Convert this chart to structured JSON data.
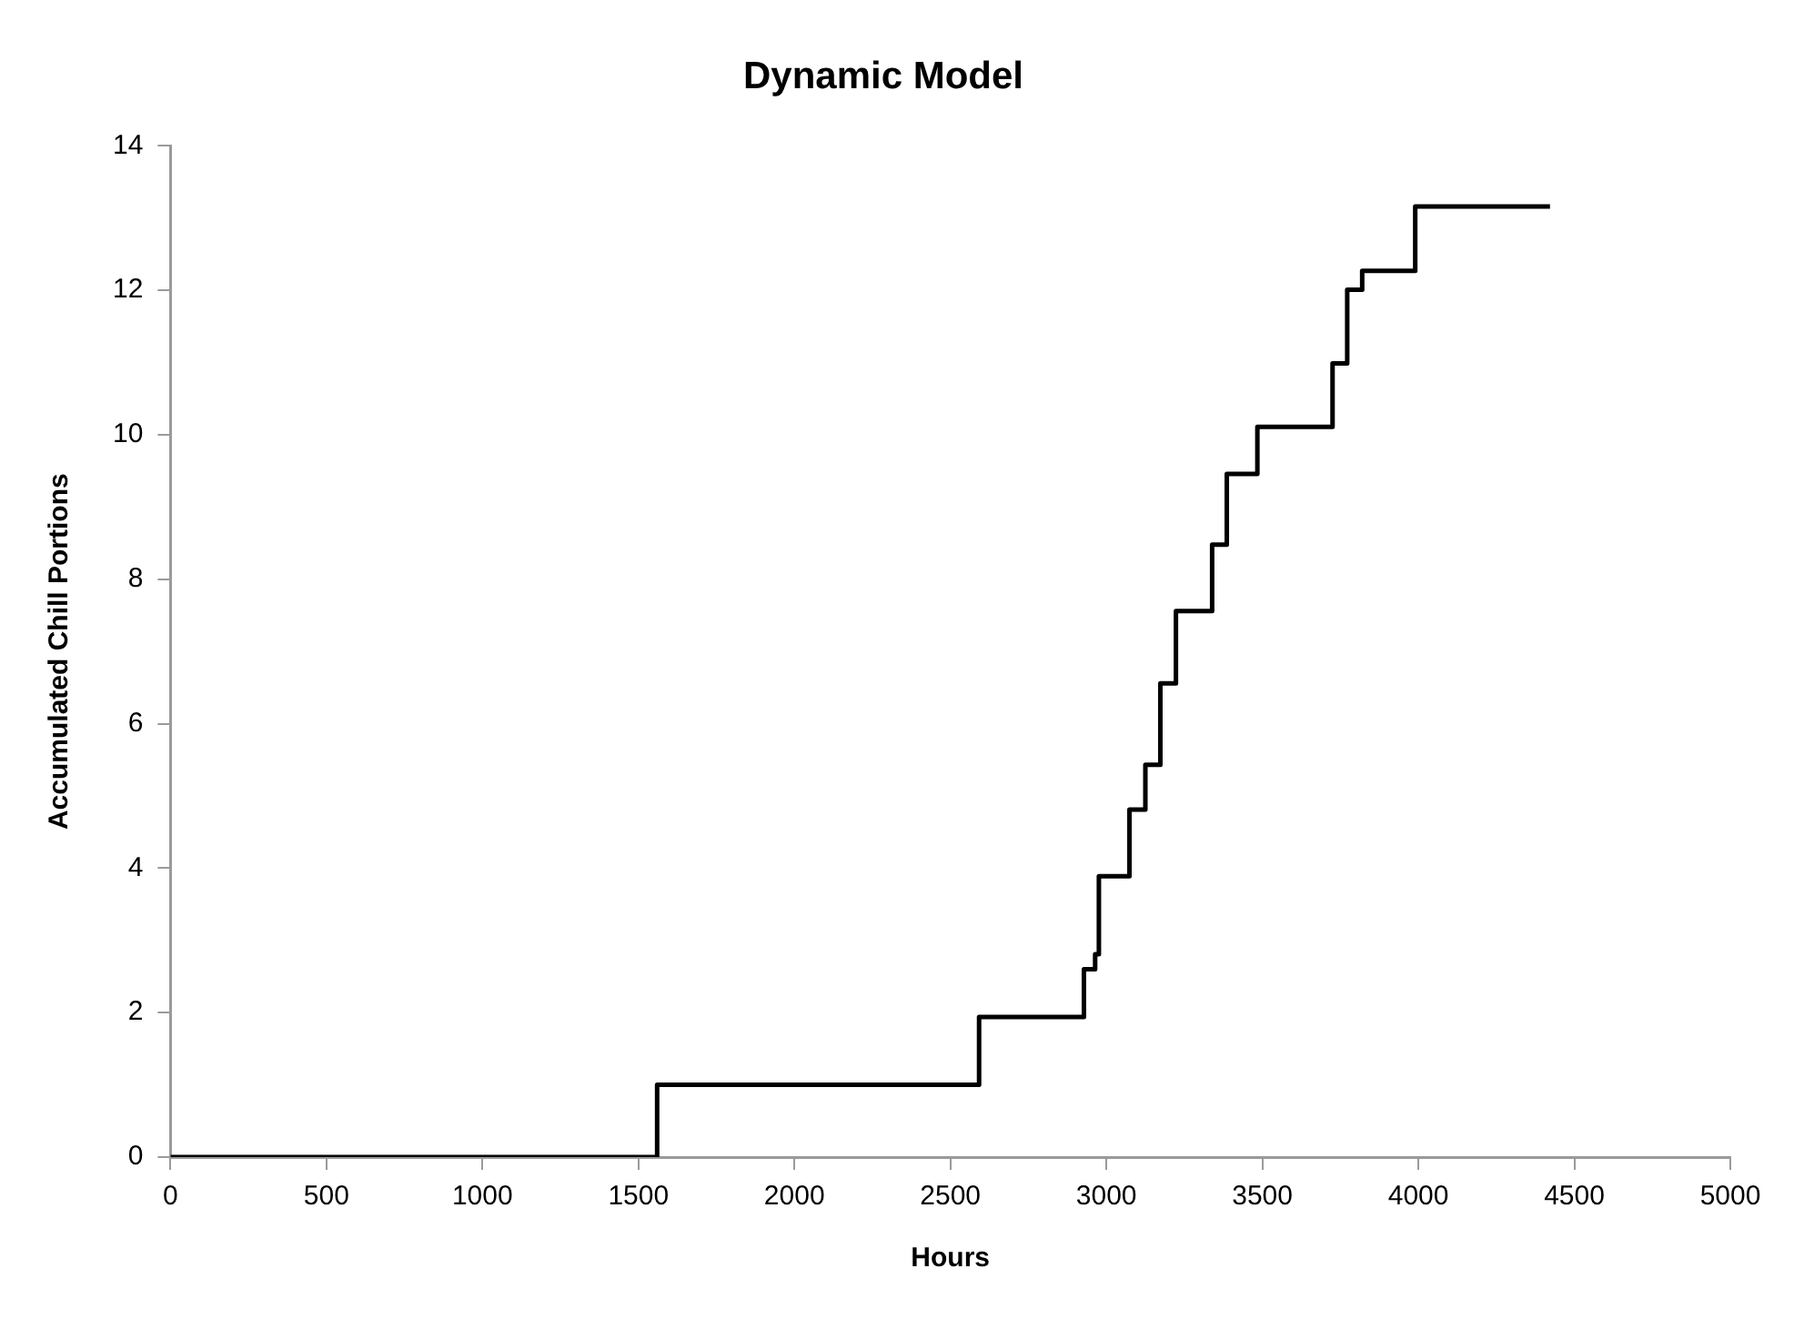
{
  "chart_data": {
    "type": "step",
    "title": "Dynamic Model",
    "xlabel": "Hours",
    "ylabel": "Accumulated Chill Portions",
    "x": [
      0,
      1560,
      2592,
      2928,
      2964,
      2976,
      3074,
      3125,
      3173,
      3223,
      3339,
      3386,
      3484,
      3725,
      3772,
      3820,
      3990,
      4422
    ],
    "series": [
      {
        "color": "#000000",
        "values": [
          0,
          1,
          1.94,
          2.6,
          2.81,
          3.89,
          4.81,
          5.43,
          6.56,
          7.56,
          8.48,
          9.46,
          10.11,
          10.99,
          12.01,
          12.27,
          13.16,
          13.16
        ]
      }
    ],
    "xlim": [
      0,
      5000
    ],
    "xticks": [
      0,
      500,
      1000,
      1500,
      2000,
      2500,
      3000,
      3500,
      4000,
      4500,
      5000
    ],
    "ylim": [
      0,
      14
    ],
    "yticks": [
      0,
      2,
      4,
      6,
      8,
      10,
      12,
      14
    ],
    "grid": false,
    "legend": false,
    "marker": "none",
    "line_style": "solid"
  }
}
